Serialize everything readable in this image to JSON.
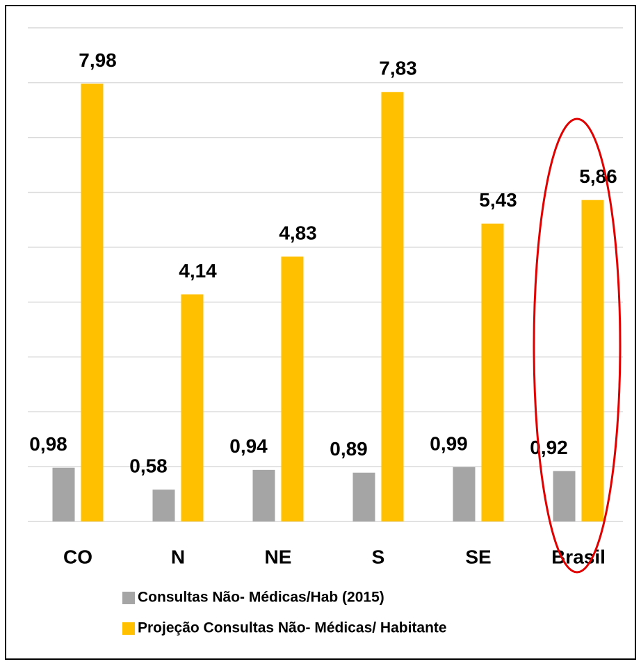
{
  "chart_data": {
    "type": "bar",
    "categories": [
      "CO",
      "N",
      "NE",
      "S",
      "SE",
      "Brasil"
    ],
    "series": [
      {
        "name": "Consultas Não- Médicas/Hab (2015)",
        "color": "#a5a5a5",
        "values": [
          0.98,
          0.58,
          0.94,
          0.89,
          0.99,
          0.92
        ],
        "value_labels": [
          "0,98",
          "0,58",
          "0,94",
          "0,89",
          "0,99",
          "0,92"
        ]
      },
      {
        "name": "Projeção Consultas Não- Médicas/ Habitante",
        "color": "#ffc000",
        "values": [
          7.98,
          4.14,
          4.83,
          7.83,
          5.43,
          5.86
        ],
        "value_labels": [
          "7,98",
          "4,14",
          "4,83",
          "7,83",
          "5,43",
          "5,86"
        ]
      }
    ],
    "ylim": [
      0,
      9
    ],
    "yticks": [
      0,
      1,
      2,
      3,
      4,
      5,
      6,
      7,
      8,
      9
    ],
    "grid": true
  }
}
